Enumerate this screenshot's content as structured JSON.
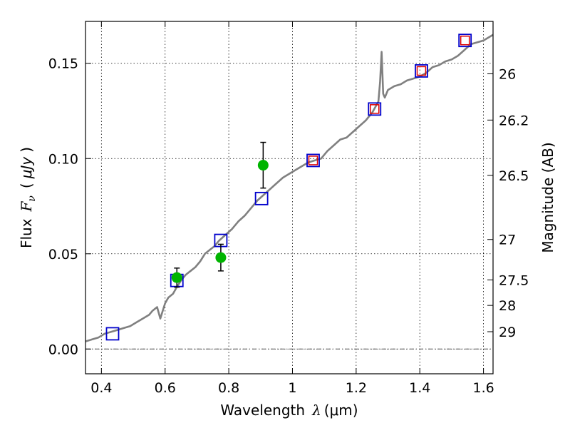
{
  "chart_data": {
    "type": "scatter",
    "xlabel_prefix": "Wavelength",
    "xlabel_sym": "λ",
    "xlabel_unit": "(μm)",
    "ylabel_prefix": "Flux",
    "ylabel_sym": "F",
    "ylabel_sub": "ν",
    "ylabel_unit_open": "(",
    "ylabel_unit": "μJy",
    "ylabel_unit_close": ")",
    "y2label": "Magnitude (AB)",
    "xlim": [
      0.35,
      1.63
    ],
    "ylim": [
      -0.013,
      0.172
    ],
    "xticks": [
      {
        "value": 0.4,
        "label": "0.4"
      },
      {
        "value": 0.6,
        "label": "0.6"
      },
      {
        "value": 0.8,
        "label": "0.8"
      },
      {
        "value": 1.0,
        "label": "1"
      },
      {
        "value": 1.2,
        "label": "1.2"
      },
      {
        "value": 1.4,
        "label": "1.4"
      },
      {
        "value": 1.6,
        "label": "1.6"
      }
    ],
    "yticks": [
      {
        "value": 0.0,
        "label": "0.00"
      },
      {
        "value": 0.05,
        "label": "0.05"
      },
      {
        "value": 0.1,
        "label": "0.10"
      },
      {
        "value": 0.15,
        "label": "0.15"
      }
    ],
    "y2ticks": [
      {
        "flux": 0.1445,
        "label": "26"
      },
      {
        "flux": 0.1202,
        "label": "26.2"
      },
      {
        "flux": 0.0912,
        "label": "26.5"
      },
      {
        "flux": 0.0575,
        "label": "27"
      },
      {
        "flux": 0.0363,
        "label": "27.5"
      },
      {
        "flux": 0.0229,
        "label": "28"
      },
      {
        "flux": 0.0091,
        "label": "29"
      }
    ],
    "grid": true,
    "colors": {
      "model": "#808080",
      "observed": "#00b400",
      "errorbar": "#000000",
      "synthetic_square": "#0000cc",
      "red_square": "#dd0000",
      "zero_line": "#555555"
    },
    "model_spectrum": {
      "x": [
        0.35,
        0.37,
        0.39,
        0.41,
        0.43,
        0.45,
        0.47,
        0.49,
        0.51,
        0.53,
        0.55,
        0.56,
        0.575,
        0.585,
        0.6,
        0.61,
        0.625,
        0.635,
        0.65,
        0.665,
        0.68,
        0.695,
        0.71,
        0.725,
        0.74,
        0.755,
        0.77,
        0.79,
        0.81,
        0.83,
        0.85,
        0.87,
        0.89,
        0.91,
        0.93,
        0.95,
        0.97,
        0.99,
        1.01,
        1.03,
        1.05,
        1.07,
        1.09,
        1.11,
        1.13,
        1.15,
        1.17,
        1.19,
        1.21,
        1.23,
        1.24,
        1.25,
        1.26,
        1.27,
        1.275,
        1.28,
        1.285,
        1.29,
        1.3,
        1.32,
        1.34,
        1.36,
        1.38,
        1.4,
        1.42,
        1.44,
        1.46,
        1.48,
        1.5,
        1.52,
        1.54,
        1.56,
        1.58,
        1.6,
        1.63
      ],
      "y": [
        0.004,
        0.005,
        0.006,
        0.008,
        0.009,
        0.01,
        0.011,
        0.012,
        0.014,
        0.016,
        0.018,
        0.02,
        0.022,
        0.016,
        0.024,
        0.027,
        0.029,
        0.032,
        0.036,
        0.039,
        0.041,
        0.043,
        0.046,
        0.05,
        0.052,
        0.054,
        0.057,
        0.06,
        0.063,
        0.067,
        0.07,
        0.074,
        0.078,
        0.081,
        0.084,
        0.087,
        0.09,
        0.092,
        0.094,
        0.096,
        0.098,
        0.099,
        0.1,
        0.104,
        0.107,
        0.11,
        0.111,
        0.114,
        0.117,
        0.12,
        0.122,
        0.124,
        0.127,
        0.13,
        0.14,
        0.156,
        0.134,
        0.132,
        0.136,
        0.138,
        0.139,
        0.141,
        0.142,
        0.143,
        0.145,
        0.148,
        0.149,
        0.151,
        0.152,
        0.154,
        0.157,
        0.16,
        0.161,
        0.162,
        0.165
      ]
    },
    "observed": [
      {
        "x": 0.637,
        "y": 0.0375,
        "yerr": 0.005
      },
      {
        "x": 0.775,
        "y": 0.048,
        "yerr": 0.007
      },
      {
        "x": 0.908,
        "y": 0.0965,
        "yerr": 0.012
      }
    ],
    "synthetic_blue": [
      {
        "x": 0.435,
        "y": 0.008
      },
      {
        "x": 0.637,
        "y": 0.036
      },
      {
        "x": 0.775,
        "y": 0.057
      },
      {
        "x": 0.903,
        "y": 0.079
      },
      {
        "x": 1.065,
        "y": 0.099
      },
      {
        "x": 1.258,
        "y": 0.126
      },
      {
        "x": 1.405,
        "y": 0.146
      },
      {
        "x": 1.542,
        "y": 0.162
      }
    ],
    "synthetic_red": [
      {
        "x": 1.065,
        "y": 0.099
      },
      {
        "x": 1.258,
        "y": 0.126
      },
      {
        "x": 1.405,
        "y": 0.146
      },
      {
        "x": 1.542,
        "y": 0.162
      }
    ]
  }
}
